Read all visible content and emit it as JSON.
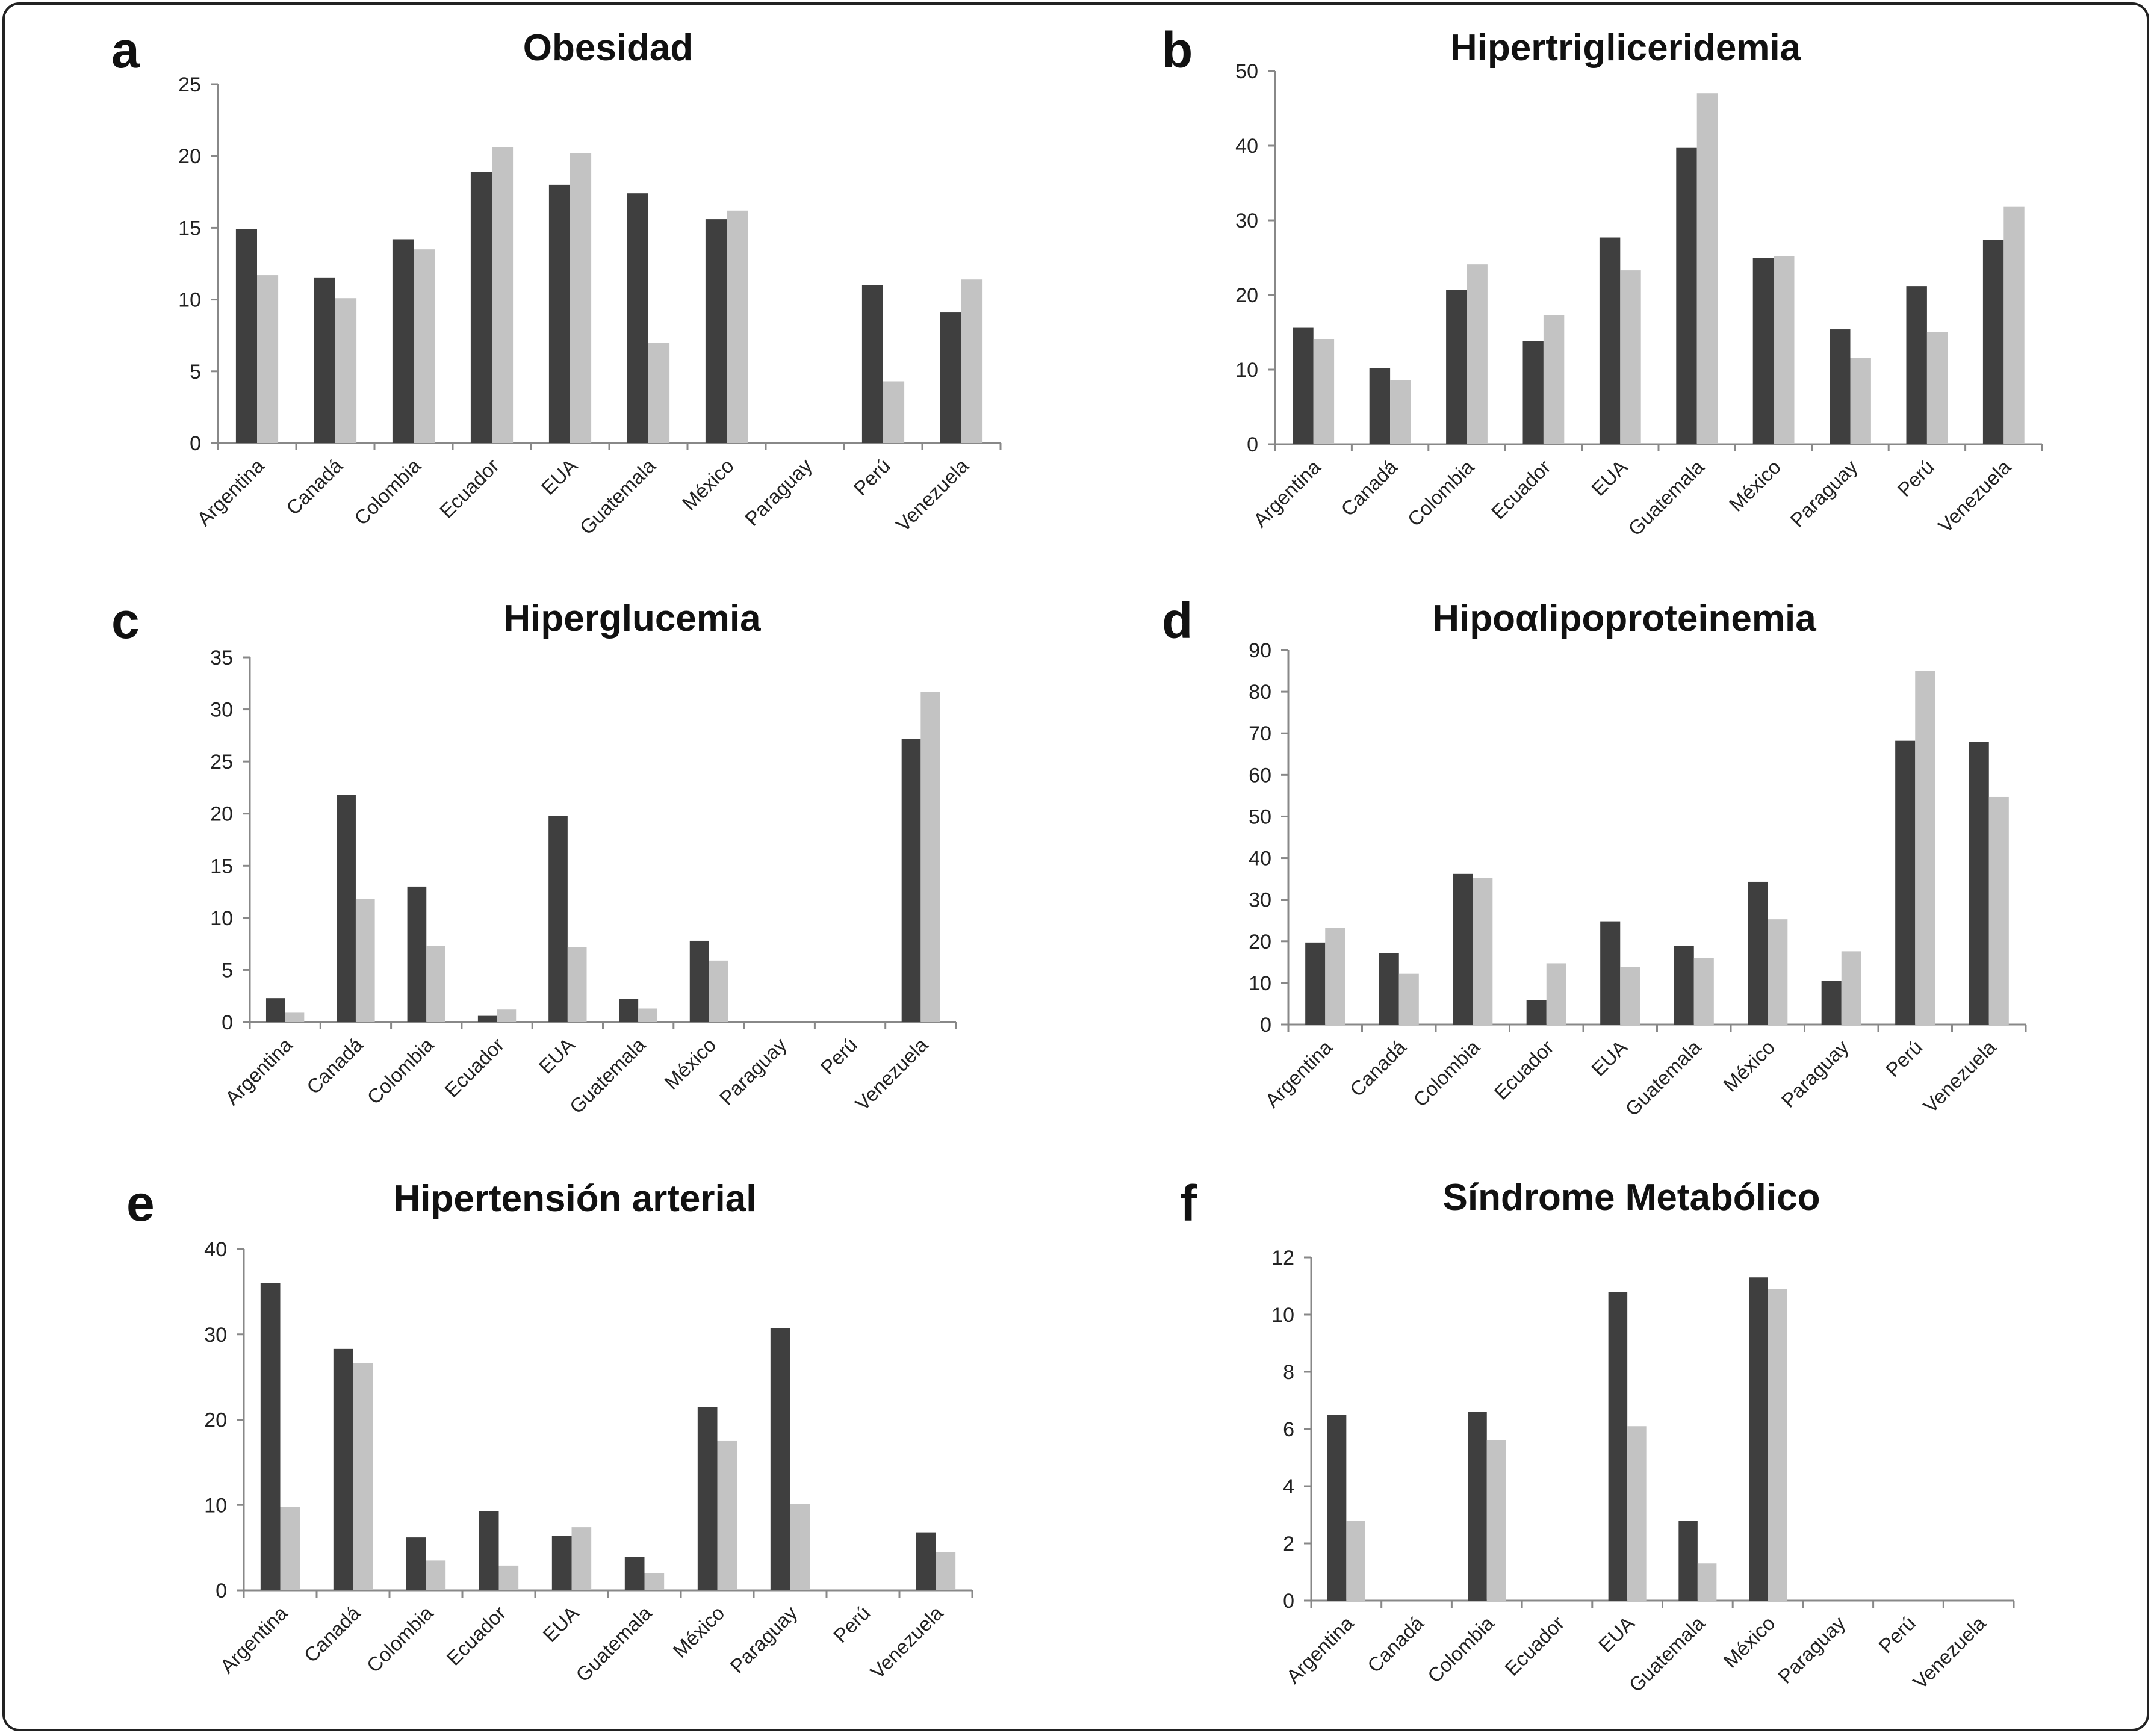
{
  "categories": [
    "Argentina",
    "Canadá",
    "Colombia",
    "Ecuador",
    "EUA",
    "Guatemala",
    "México",
    "Paraguay",
    "Perú",
    "Venezuela"
  ],
  "colors": {
    "series1": "#3f3f3f",
    "series2": "#c3c3c3",
    "axis": "#888888",
    "text": "#222222"
  },
  "chart_data": [
    {
      "type": "bar",
      "panel": "a",
      "title": "Obesidad",
      "ylim": [
        0,
        25
      ],
      "yticks": [
        0,
        5,
        10,
        15,
        20,
        25
      ],
      "categories": [
        "Argentina",
        "Canadá",
        "Colombia",
        "Ecuador",
        "EUA",
        "Guatemala",
        "México",
        "Paraguay",
        "Perú",
        "Venezuela"
      ],
      "series": [
        {
          "values": [
            14.9,
            11.5,
            14.2,
            18.9,
            18.0,
            17.4,
            15.6,
            0,
            11.0,
            9.1
          ]
        },
        {
          "values": [
            11.7,
            10.1,
            13.5,
            20.6,
            20.2,
            7.0,
            16.2,
            0,
            4.3,
            11.4
          ]
        }
      ]
    },
    {
      "type": "bar",
      "panel": "b",
      "title": "Hipertrigliceridemia",
      "ylim": [
        0,
        50
      ],
      "yticks": [
        0,
        10,
        20,
        30,
        40,
        50
      ],
      "categories": [
        "Argentina",
        "Canadá",
        "Colombia",
        "Ecuador",
        "EUA",
        "Guatemala",
        "México",
        "Paraguay",
        "Perú",
        "Venezuela"
      ],
      "series": [
        {
          "values": [
            15.6,
            10.2,
            20.7,
            13.8,
            27.7,
            39.7,
            25.0,
            15.4,
            21.2,
            27.4
          ]
        },
        {
          "values": [
            14.1,
            8.6,
            24.1,
            17.3,
            23.3,
            47.0,
            25.2,
            11.6,
            15.0,
            31.8
          ]
        }
      ]
    },
    {
      "type": "bar",
      "panel": "c",
      "title": "Hiperglucemia",
      "ylim": [
        0,
        35
      ],
      "yticks": [
        0,
        5,
        10,
        15,
        20,
        25,
        30,
        35
      ],
      "categories": [
        "Argentina",
        "Canadá",
        "Colombia",
        "Ecuador",
        "EUA",
        "Guatemala",
        "México",
        "Paraguay",
        "Perú",
        "Venezuela"
      ],
      "series": [
        {
          "values": [
            2.3,
            21.8,
            13.0,
            0.6,
            19.8,
            2.2,
            7.8,
            0,
            0,
            27.2
          ]
        },
        {
          "values": [
            0.9,
            11.8,
            7.3,
            1.2,
            7.2,
            1.3,
            5.9,
            0,
            0,
            31.7
          ]
        }
      ]
    },
    {
      "type": "bar",
      "panel": "d",
      "title": "Hipoαlipoproteinemia",
      "ylim": [
        0,
        90
      ],
      "yticks": [
        0,
        10,
        20,
        30,
        40,
        50,
        60,
        70,
        80,
        90
      ],
      "categories": [
        "Argentina",
        "Canadá",
        "Colombia",
        "Ecuador",
        "EUA",
        "Guatemala",
        "México",
        "Paraguay",
        "Perú",
        "Venezuela"
      ],
      "series": [
        {
          "values": [
            19.7,
            17.2,
            36.2,
            5.9,
            24.8,
            18.9,
            34.3,
            10.5,
            68.2,
            67.9
          ]
        },
        {
          "values": [
            23.2,
            12.2,
            35.2,
            14.7,
            13.8,
            16.0,
            25.3,
            17.6,
            85.0,
            54.7
          ]
        }
      ]
    },
    {
      "type": "bar",
      "panel": "e",
      "title": "Hipertensión arterial",
      "ylim": [
        0,
        40
      ],
      "yticks": [
        0,
        10,
        20,
        30,
        40
      ],
      "categories": [
        "Argentina",
        "Canadá",
        "Colombia",
        "Ecuador",
        "EUA",
        "Guatemala",
        "México",
        "Paraguay",
        "Perú",
        "Venezuela"
      ],
      "series": [
        {
          "values": [
            36.0,
            28.3,
            6.2,
            9.3,
            6.4,
            3.9,
            21.5,
            30.7,
            0,
            6.8
          ]
        },
        {
          "values": [
            9.8,
            26.6,
            3.5,
            2.9,
            7.4,
            2.0,
            17.5,
            10.1,
            0,
            4.5
          ]
        }
      ]
    },
    {
      "type": "bar",
      "panel": "f",
      "title": "Síndrome Metabólico",
      "ylim": [
        0,
        12
      ],
      "yticks": [
        0,
        2,
        4,
        6,
        8,
        10,
        12
      ],
      "categories": [
        "Argentina",
        "Canadá",
        "Colombia",
        "Ecuador",
        "EUA",
        "Guatemala",
        "México",
        "Paraguay",
        "Perú",
        "Venezuela"
      ],
      "series": [
        {
          "values": [
            6.5,
            0,
            6.6,
            0,
            10.8,
            2.8,
            11.3,
            0,
            0,
            0
          ]
        },
        {
          "values": [
            2.8,
            0,
            5.6,
            0,
            6.1,
            1.3,
            10.9,
            0,
            0,
            0
          ]
        }
      ]
    }
  ]
}
